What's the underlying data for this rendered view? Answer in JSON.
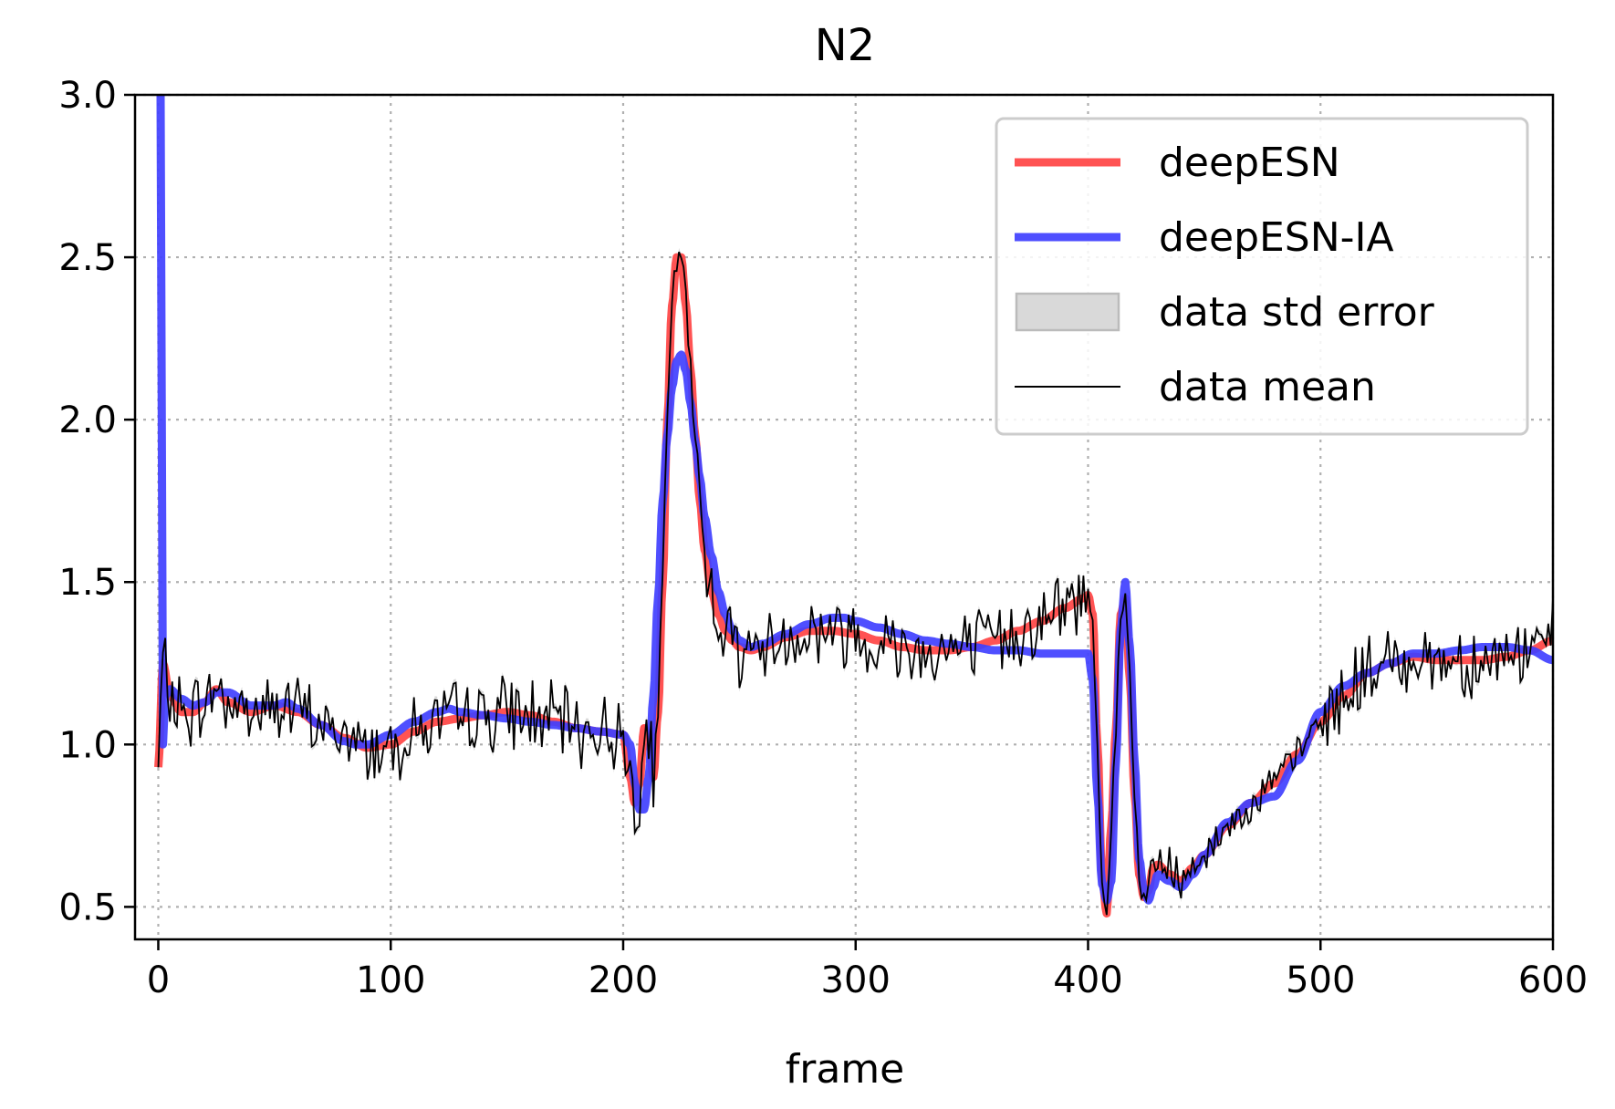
{
  "chart_data": {
    "type": "line",
    "title": "N2",
    "xlabel": "frame",
    "ylabel": "",
    "xlim": [
      -10,
      600
    ],
    "ylim": [
      0.4,
      3.0
    ],
    "xticks": [
      "0",
      "100",
      "200",
      "300",
      "400",
      "500",
      "600"
    ],
    "yticks": [
      "0.5",
      "1.0",
      "1.5",
      "2.0",
      "2.5",
      "3.0"
    ],
    "grid": true,
    "legend_position": "top-right",
    "series": [
      {
        "name": "deepESN",
        "color": "#ff4444",
        "x": [
          0,
          2,
          5,
          10,
          15,
          20,
          25,
          30,
          40,
          50,
          60,
          70,
          80,
          90,
          100,
          110,
          120,
          130,
          140,
          150,
          160,
          170,
          180,
          190,
          200,
          203,
          205,
          207,
          209,
          211,
          213,
          215,
          217,
          219,
          221,
          223,
          225,
          227,
          229,
          231,
          233,
          235,
          238,
          241,
          244,
          247,
          250,
          255,
          260,
          270,
          280,
          290,
          300,
          310,
          320,
          330,
          340,
          350,
          360,
          370,
          380,
          390,
          398,
          400,
          402,
          404,
          406,
          408,
          410,
          412,
          414,
          416,
          418,
          420,
          422,
          424,
          426,
          428,
          430,
          435,
          440,
          445,
          450,
          460,
          470,
          480,
          490,
          500,
          510,
          520,
          530,
          540,
          550,
          560,
          570,
          580,
          590,
          600
        ],
        "values": [
          0.93,
          1.25,
          1.15,
          1.1,
          1.1,
          1.13,
          1.17,
          1.13,
          1.1,
          1.12,
          1.1,
          1.06,
          1.02,
          0.99,
          1.0,
          1.04,
          1.07,
          1.08,
          1.09,
          1.1,
          1.09,
          1.07,
          1.05,
          1.04,
          1.03,
          0.9,
          0.82,
          0.88,
          1.05,
          1.02,
          0.9,
          1.1,
          1.5,
          2.0,
          2.35,
          2.5,
          2.5,
          2.35,
          2.15,
          1.95,
          1.75,
          1.6,
          1.47,
          1.4,
          1.35,
          1.32,
          1.3,
          1.29,
          1.3,
          1.33,
          1.35,
          1.35,
          1.34,
          1.32,
          1.3,
          1.29,
          1.29,
          1.3,
          1.32,
          1.35,
          1.38,
          1.42,
          1.45,
          1.46,
          1.4,
          1.0,
          0.6,
          0.48,
          0.75,
          1.05,
          1.4,
          1.45,
          1.2,
          0.85,
          0.6,
          0.53,
          0.55,
          0.62,
          0.63,
          0.6,
          0.58,
          0.62,
          0.66,
          0.75,
          0.82,
          0.88,
          0.97,
          1.07,
          1.15,
          1.22,
          1.25,
          1.27,
          1.26,
          1.26,
          1.26,
          1.27,
          1.29,
          1.32
        ]
      },
      {
        "name": "deepESN-IA",
        "color": "#4040ff",
        "x": [
          1,
          1.5,
          2,
          3,
          5,
          10,
          15,
          20,
          25,
          30,
          40,
          50,
          55,
          60,
          70,
          80,
          85,
          90,
          100,
          110,
          120,
          125,
          130,
          140,
          150,
          160,
          170,
          180,
          190,
          200,
          203,
          205,
          207,
          209,
          211,
          213,
          215,
          217,
          219,
          221,
          223,
          225,
          227,
          229,
          231,
          233,
          235,
          238,
          241,
          244,
          247,
          250,
          255,
          260,
          270,
          280,
          290,
          295,
          300,
          310,
          320,
          330,
          340,
          350,
          360,
          370,
          380,
          390,
          398,
          400,
          402,
          404,
          406,
          408,
          410,
          412,
          414,
          416,
          418,
          420,
          422,
          424,
          426,
          428,
          430,
          435,
          440,
          445,
          450,
          460,
          470,
          480,
          490,
          500,
          510,
          520,
          530,
          540,
          550,
          560,
          570,
          580,
          590,
          600
        ],
        "values": [
          3.0,
          2.0,
          1.0,
          1.15,
          1.17,
          1.14,
          1.12,
          1.13,
          1.16,
          1.16,
          1.12,
          1.12,
          1.13,
          1.11,
          1.06,
          1.01,
          1.0,
          1.0,
          1.03,
          1.07,
          1.1,
          1.11,
          1.1,
          1.09,
          1.08,
          1.07,
          1.06,
          1.05,
          1.04,
          1.03,
          1.0,
          0.88,
          0.8,
          0.8,
          0.9,
          1.15,
          1.45,
          1.75,
          1.95,
          2.1,
          2.18,
          2.2,
          2.15,
          2.05,
          1.93,
          1.82,
          1.7,
          1.58,
          1.47,
          1.4,
          1.35,
          1.32,
          1.3,
          1.31,
          1.34,
          1.37,
          1.39,
          1.39,
          1.38,
          1.36,
          1.34,
          1.32,
          1.31,
          1.3,
          1.29,
          1.29,
          1.28,
          1.28,
          1.28,
          1.28,
          1.2,
          0.85,
          0.57,
          0.52,
          0.58,
          0.95,
          1.35,
          1.5,
          1.3,
          0.95,
          0.65,
          0.55,
          0.52,
          0.56,
          0.6,
          0.58,
          0.56,
          0.6,
          0.66,
          0.76,
          0.82,
          0.84,
          0.95,
          1.1,
          1.18,
          1.22,
          1.25,
          1.28,
          1.28,
          1.29,
          1.3,
          1.3,
          1.29,
          1.26
        ]
      }
    ],
    "data_mean_seed": 7,
    "legend": [
      {
        "label": "deepESN",
        "kind": "line",
        "color": "#ff4444"
      },
      {
        "label": "deepESN-IA",
        "kind": "line",
        "color": "#4040ff"
      },
      {
        "label": "data std error",
        "kind": "patch",
        "color": "#d9d9d9"
      },
      {
        "label": "data mean",
        "kind": "thin-line",
        "color": "#000000"
      }
    ]
  }
}
